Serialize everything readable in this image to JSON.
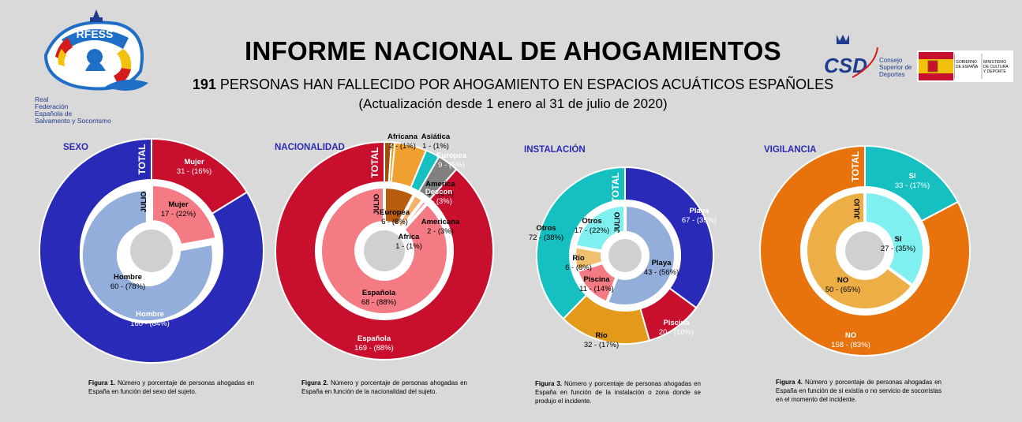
{
  "header": {
    "title": "INFORME NACIONAL DE AHOGAMIENTOS",
    "subtitle_count": "191",
    "subtitle_rest": "PERSONAS HAN FALLECIDO POR AHOGAMIENTO EN ESPACIOS ACUÁTICOS ESPAÑOLES",
    "date": "(Actualización desde 1 enero al 31 de julio de 2020)"
  },
  "logos": {
    "rfess_lines": [
      "Real",
      "Federación",
      "Española de",
      "Salvamento y Socorrismo"
    ],
    "rfess_mark": "RFESS",
    "csd_mark": "CSD",
    "csd_lines": [
      "Consejo",
      "Superior de",
      "Deportes"
    ],
    "gov_left": [
      "GOBIERNO",
      "DE ESPAÑA"
    ],
    "gov_right": [
      "MINISTERIO",
      "DE CULTURA",
      "Y DEPORTE"
    ]
  },
  "ring_labels": {
    "total": "TOTAL",
    "july": "JULIO"
  },
  "chart_data": [
    {
      "type": "pie",
      "title": "SEXO",
      "outer": [
        {
          "name": "Mujer",
          "value": 31,
          "pct": "16%",
          "label": "31 - (16%)",
          "color": "#c8102e"
        },
        {
          "name": "Hombre",
          "value": 160,
          "pct": "84%",
          "label": "160 - (84%)",
          "color": "#2a2ab8"
        }
      ],
      "inner": [
        {
          "name": "Mujer",
          "value": 17,
          "pct": "22%",
          "label": "17 - (22%)",
          "color": "#f47a84"
        },
        {
          "name": "Hombre",
          "value": 60,
          "pct": "78%",
          "label": "60 - (78%)",
          "color": "#93aedb"
        }
      ],
      "caption_bold": "Figura 1.",
      "caption": "Número y porcentaje de personas ahogadas en España en función del sexo del sujeto."
    },
    {
      "type": "pie",
      "title": "NACIONALIDAD",
      "outer": [
        {
          "name": "Africana",
          "value": 2,
          "pct": "1%",
          "label": "2 - (1%)",
          "color": "#a0500e"
        },
        {
          "name": "Asiática",
          "value": 1,
          "pct": "1%",
          "label": "1 - (1%)",
          "color": "#e39a1a"
        },
        {
          "name": "Europea",
          "value": 9,
          "pct": "5%",
          "label": "9 - (5%)",
          "color": "#f0a030"
        },
        {
          "name": "America",
          "value": 4,
          "pct": "2%",
          "label": "4 - (2%)",
          "color": "#16c0c0"
        },
        {
          "name": "Descon",
          "value": 6,
          "pct": "3%",
          "label": "6 - (3%)",
          "color": "#808080"
        },
        {
          "name": "Española",
          "value": 169,
          "pct": "88%",
          "label": "169 - (88%)",
          "color": "#c8102e"
        }
      ],
      "inner": [
        {
          "name": "Europea",
          "value": 6,
          "pct": "8%",
          "label": "6 - (8%)",
          "color": "#b85c10"
        },
        {
          "name": "Americana",
          "value": 2,
          "pct": "3%",
          "label": "2 - (3%)",
          "color": "#f6b26b"
        },
        {
          "name": "Africa",
          "value": 1,
          "pct": "1%",
          "label": "1 - (1%)",
          "color": "#f5a3ab"
        },
        {
          "name": "Española",
          "value": 68,
          "pct": "88%",
          "label": "68 - (88%)",
          "color": "#f47a84"
        }
      ],
      "caption_bold": "Figura 2.",
      "caption": "Número y porcentaje de personas ahogadas en España en función de la nacionalidad del sujeto."
    },
    {
      "type": "pie",
      "title": "INSTALACIÓN",
      "outer": [
        {
          "name": "Playa",
          "value": 67,
          "pct": "35%",
          "label": "67 - (35%)",
          "color": "#2a2ab8"
        },
        {
          "name": "Piscina",
          "value": 20,
          "pct": "10%",
          "label": "20 - (10%)",
          "color": "#c8102e"
        },
        {
          "name": "Río",
          "value": 32,
          "pct": "17%",
          "label": "32 - (17%)",
          "color": "#e39a1a"
        },
        {
          "name": "Otros",
          "value": 72,
          "pct": "38%",
          "label": "72 - (38%)",
          "color": "#16c0c0"
        }
      ],
      "inner": [
        {
          "name": "Playa",
          "value": 43,
          "pct": "56%",
          "label": "43 - (56%)",
          "color": "#93aedb"
        },
        {
          "name": "Piscina",
          "value": 11,
          "pct": "14%",
          "label": "11 - (14%)",
          "color": "#f47a84"
        },
        {
          "name": "Río",
          "value": 6,
          "pct": "8%",
          "label": "6 - (8%)",
          "color": "#f0c070"
        },
        {
          "name": "Otros",
          "value": 17,
          "pct": "22%",
          "label": "17 - (22%)",
          "color": "#7fefef"
        }
      ],
      "caption_bold": "Figura 3.",
      "caption": "Número y porcentaje de personas ahogadas en España en función de la instalación o zona donde se produjo el incidente."
    },
    {
      "type": "pie",
      "title": "VIGILANCIA",
      "outer": [
        {
          "name": "SI",
          "value": 33,
          "pct": "17%",
          "label": "33 - (17%)",
          "color": "#16c0c0"
        },
        {
          "name": "NO",
          "value": 158,
          "pct": "83%",
          "label": "158 - (83%)",
          "color": "#e8720c"
        }
      ],
      "inner": [
        {
          "name": "SI",
          "value": 27,
          "pct": "35%",
          "label": "27 - (35%)",
          "color": "#7fefef"
        },
        {
          "name": "NO",
          "value": 50,
          "pct": "65%",
          "label": "50 - (65%)",
          "color": "#ecae45"
        }
      ],
      "caption_bold": "Figura 4.",
      "caption": "Número y porcentaje de personas ahogadas en España en función de si existía o no servicio de socorristas en el momento del incidente."
    }
  ]
}
